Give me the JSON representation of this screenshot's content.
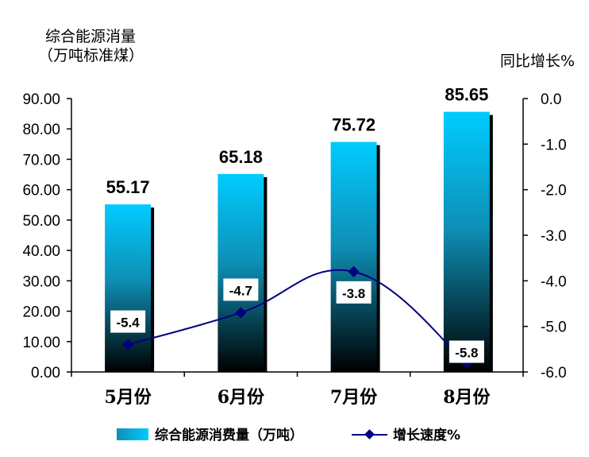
{
  "chart_data": {
    "type": "bar",
    "categories": [
      "5月份",
      "6月份",
      "7月份",
      "8月份"
    ],
    "series": [
      {
        "name": "综合能源消费量（万吨）",
        "type": "bar",
        "axis": "left",
        "values": [
          55.17,
          65.18,
          75.72,
          85.65
        ],
        "labels": [
          "55.17",
          "65.18",
          "75.72",
          "85.65"
        ]
      },
      {
        "name": "增长速度%",
        "type": "line",
        "axis": "right",
        "values": [
          -5.4,
          -4.7,
          -3.8,
          -5.8
        ],
        "labels": [
          "-5.4",
          "-4.7",
          "-3.8",
          "-5.8"
        ]
      }
    ],
    "left_axis": {
      "title_line1": "综合能源消量",
      "title_line2": "（万吨标准煤）",
      "ylim": [
        0,
        90
      ],
      "ticks": [
        "0.00",
        "10.00",
        "20.00",
        "30.00",
        "40.00",
        "50.00",
        "60.00",
        "70.00",
        "80.00",
        "90.00"
      ]
    },
    "right_axis": {
      "title": "同比增长%",
      "ylim": [
        -6.0,
        0.0
      ],
      "ticks": [
        "0.0",
        "-1.0",
        "-2.0",
        "-3.0",
        "-4.0",
        "-5.0",
        "-6.0"
      ]
    },
    "legend_position": "bottom",
    "grid": false,
    "colors": {
      "bar_top": "#00CCFF",
      "bar_mid": "#0E8FB5",
      "bar_bottom": "#000000",
      "bar_shadow": "#000000",
      "line": "#000080",
      "axis": "#000000"
    }
  }
}
